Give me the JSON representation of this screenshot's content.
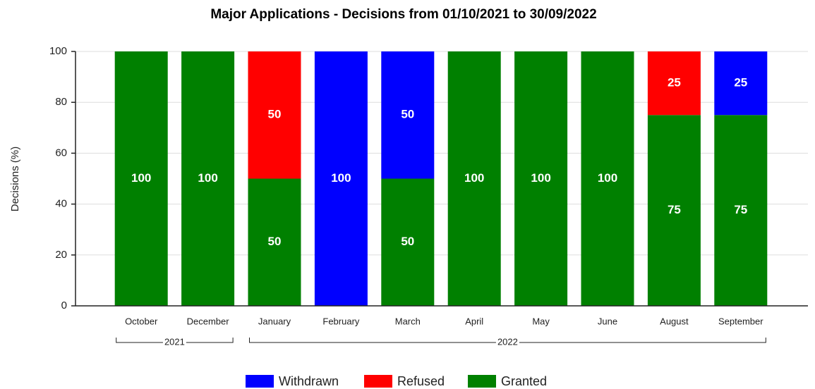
{
  "chart_data": {
    "type": "stacked_bar",
    "title": "Major Applications - Decisions from 01/10/2021 to 30/09/2022",
    "y_label": "Decisions (%)",
    "categories": [
      "October",
      "December",
      "January",
      "February",
      "March",
      "April",
      "May",
      "June",
      "August",
      "September"
    ],
    "groups": [
      {
        "label": "2021",
        "start": 0,
        "end": 1
      },
      {
        "label": "2022",
        "start": 2,
        "end": 9
      }
    ],
    "series": [
      {
        "name": "Withdrawn",
        "color": "#0000ff",
        "values": [
          0,
          0,
          0,
          100,
          50,
          0,
          0,
          0,
          0,
          25
        ]
      },
      {
        "name": "Refused",
        "color": "#ff0000",
        "values": [
          0,
          0,
          50,
          0,
          0,
          0,
          0,
          0,
          25,
          0
        ]
      },
      {
        "name": "Granted",
        "color": "#008000",
        "values": [
          100,
          100,
          50,
          0,
          50,
          100,
          100,
          100,
          75,
          75
        ]
      }
    ],
    "ylim": [
      0,
      100
    ],
    "yticks": [
      0,
      20,
      40,
      60,
      80,
      100
    ],
    "grid": true,
    "legend": "bottom"
  }
}
